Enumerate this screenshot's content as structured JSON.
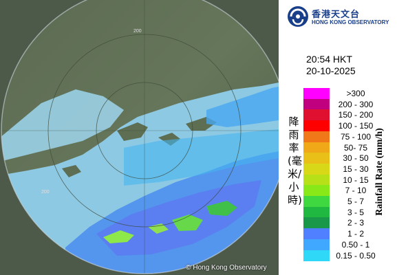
{
  "header": {
    "org_name_cn": "香港天文台",
    "org_name_en": "HONG KONG OBSERVATORY"
  },
  "timestamp": {
    "time": "20:54 HKT",
    "date": "20-10-2025"
  },
  "map": {
    "range_labels": [
      "200",
      "200"
    ],
    "copyright": "Hong Kong Observatory",
    "copyright_symbol": "©"
  },
  "legend": {
    "title_cn": "降雨率(毫米/小時)",
    "title_en": "Rainfall Rate (mm/h)",
    "items": [
      {
        "label": ">300",
        "color": "#ff00ff"
      },
      {
        "label": "200 - 300",
        "color": "#c0007f"
      },
      {
        "label": "150 - 200",
        "color": "#e01030"
      },
      {
        "label": "100 - 150",
        "color": "#ff0000"
      },
      {
        "label": "75 - 100",
        "color": "#f07818"
      },
      {
        "label": "50- 75",
        "color": "#f0a818"
      },
      {
        "label": "30 - 50",
        "color": "#e8c018"
      },
      {
        "label": "15 - 30",
        "color": "#d8d818"
      },
      {
        "label": "10 - 15",
        "color": "#b8e018"
      },
      {
        "label": "7 - 10",
        "color": "#88e818"
      },
      {
        "label": "5 - 7",
        "color": "#40d840"
      },
      {
        "label": "3 - 5",
        "color": "#20b840"
      },
      {
        "label": "2 - 3",
        "color": "#189848"
      },
      {
        "label": "1 - 2",
        "color": "#5080ff"
      },
      {
        "label": "0.50 - 1",
        "color": "#40a8ff"
      },
      {
        "label": "0.15 - 0.50",
        "color": "#30d8f8"
      }
    ]
  }
}
